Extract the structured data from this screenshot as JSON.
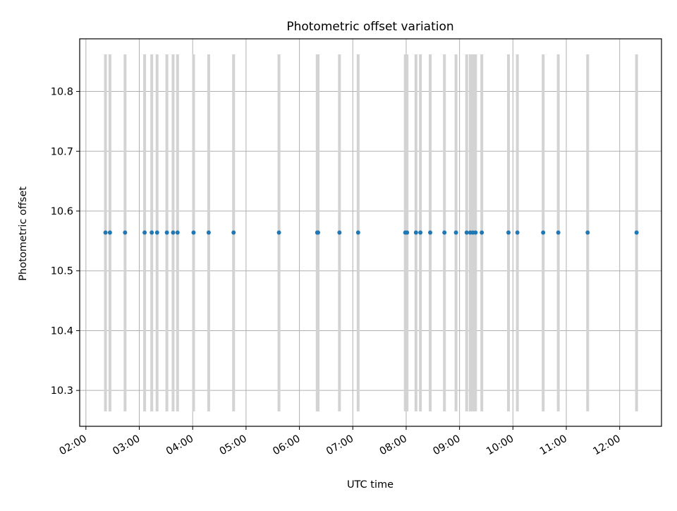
{
  "chart_data": {
    "type": "scatter",
    "title": "Photometric offset variation",
    "xlabel": "UTC time",
    "ylabel": "Photometric offset",
    "x_is_time": true,
    "xlim": [
      "01:53",
      "12:47"
    ],
    "ylim": [
      10.24,
      10.888
    ],
    "x_ticks": [
      "02:00",
      "03:00",
      "04:00",
      "05:00",
      "06:00",
      "07:00",
      "08:00",
      "09:00",
      "10:00",
      "11:00",
      "12:00"
    ],
    "y_ticks": [
      10.3,
      10.4,
      10.5,
      10.6,
      10.7,
      10.8
    ],
    "y_tick_labels": [
      "10.3",
      "10.4",
      "10.5",
      "10.6",
      "10.7",
      "10.8"
    ],
    "grid": true,
    "series": [
      {
        "marker": "point",
        "color": "#1f77b4",
        "errorbar_color": "#d3d3d3",
        "errorbar_range": [
          10.265,
          10.862
        ],
        "x": [
          "02:22",
          "02:27",
          "02:44",
          "03:06",
          "03:14",
          "03:20",
          "03:31",
          "03:38",
          "03:43",
          "04:01",
          "04:18",
          "04:46",
          "05:37",
          "06:20",
          "06:21",
          "06:45",
          "07:06",
          "07:59",
          "08:01",
          "08:11",
          "08:16",
          "08:27",
          "08:43",
          "08:56",
          "09:08",
          "09:12",
          "09:15",
          "09:18",
          "09:25",
          "09:55",
          "10:05",
          "10:34",
          "10:51",
          "11:24",
          "12:19"
        ],
        "y": [
          10.564,
          10.564,
          10.564,
          10.564,
          10.564,
          10.564,
          10.564,
          10.564,
          10.564,
          10.564,
          10.564,
          10.564,
          10.564,
          10.564,
          10.564,
          10.564,
          10.564,
          10.564,
          10.564,
          10.564,
          10.564,
          10.564,
          10.564,
          10.564,
          10.564,
          10.564,
          10.564,
          10.564,
          10.564,
          10.564,
          10.564,
          10.564,
          10.564,
          10.564,
          10.564
        ]
      }
    ]
  }
}
